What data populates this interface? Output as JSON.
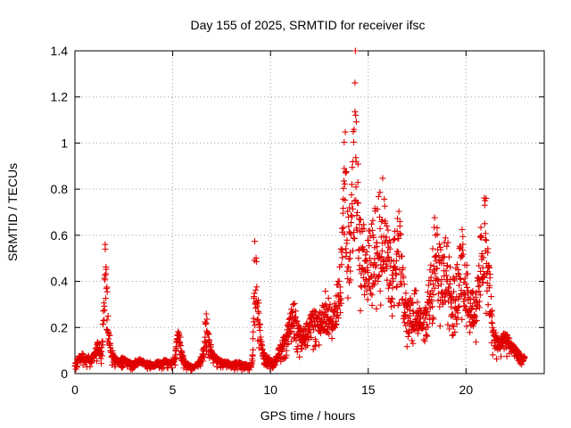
{
  "chart_data": {
    "type": "scatter",
    "title": "Day 155 of 2025, SRMTID for receiver ifsc",
    "xlabel": "GPS time / hours",
    "ylabel": "SRMTID / TECUs",
    "xlim": [
      0,
      24
    ],
    "ylim": [
      0,
      1.4
    ],
    "x_ticks": [
      0,
      5,
      10,
      15,
      20
    ],
    "y_ticks": [
      0,
      0.2,
      0.4,
      0.6,
      0.8,
      1.0,
      1.2,
      1.4
    ],
    "x_tick_labels": [
      "0",
      "5",
      "10",
      "15",
      "20"
    ],
    "y_tick_labels": [
      "0",
      "0.2",
      "0.4",
      "0.6",
      "0.8",
      "1",
      "1.2",
      "1.4"
    ],
    "grid": true,
    "marker": "plus",
    "series": [
      {
        "name": "SRMTID",
        "color": "#e00000",
        "description": "approximate envelope of the scatter cloud, sampled at 0.1 h",
        "x_step": 0.1,
        "x_start": 0.0,
        "points": [
          [
            0.0,
            0.04
          ],
          [
            0.1,
            0.06
          ],
          [
            0.2,
            0.08
          ],
          [
            0.3,
            0.07
          ],
          [
            0.4,
            0.09
          ],
          [
            0.5,
            0.06
          ],
          [
            0.6,
            0.07
          ],
          [
            0.7,
            0.08
          ],
          [
            0.8,
            0.06
          ],
          [
            0.9,
            0.07
          ],
          [
            1.0,
            0.09
          ],
          [
            1.1,
            0.12
          ],
          [
            1.2,
            0.14
          ],
          [
            1.3,
            0.1
          ],
          [
            1.4,
            0.15
          ],
          [
            1.5,
            0.35
          ],
          [
            1.55,
            0.62
          ],
          [
            1.6,
            0.5
          ],
          [
            1.7,
            0.22
          ],
          [
            1.8,
            0.14
          ],
          [
            1.9,
            0.1
          ],
          [
            2.0,
            0.08
          ],
          [
            2.2,
            0.06
          ],
          [
            2.4,
            0.07
          ],
          [
            2.6,
            0.06
          ],
          [
            2.8,
            0.05
          ],
          [
            3.0,
            0.05
          ],
          [
            3.2,
            0.06
          ],
          [
            3.4,
            0.06
          ],
          [
            3.6,
            0.05
          ],
          [
            3.8,
            0.05
          ],
          [
            4.0,
            0.04
          ],
          [
            4.2,
            0.05
          ],
          [
            4.4,
            0.05
          ],
          [
            4.6,
            0.06
          ],
          [
            4.8,
            0.05
          ],
          [
            5.0,
            0.06
          ],
          [
            5.1,
            0.08
          ],
          [
            5.2,
            0.14
          ],
          [
            5.3,
            0.2
          ],
          [
            5.4,
            0.15
          ],
          [
            5.5,
            0.09
          ],
          [
            5.6,
            0.05
          ],
          [
            5.8,
            0.04
          ],
          [
            6.0,
            0.03
          ],
          [
            6.2,
            0.04
          ],
          [
            6.4,
            0.06
          ],
          [
            6.6,
            0.12
          ],
          [
            6.7,
            0.28
          ],
          [
            6.8,
            0.2
          ],
          [
            6.9,
            0.14
          ],
          [
            7.0,
            0.1
          ],
          [
            7.2,
            0.07
          ],
          [
            7.4,
            0.06
          ],
          [
            7.6,
            0.05
          ],
          [
            7.8,
            0.05
          ],
          [
            8.0,
            0.04
          ],
          [
            8.2,
            0.05
          ],
          [
            8.4,
            0.05
          ],
          [
            8.6,
            0.04
          ],
          [
            8.8,
            0.04
          ],
          [
            9.0,
            0.03
          ],
          [
            9.1,
            0.1
          ],
          [
            9.2,
            0.55
          ],
          [
            9.3,
            0.45
          ],
          [
            9.4,
            0.28
          ],
          [
            9.5,
            0.18
          ],
          [
            9.6,
            0.1
          ],
          [
            9.8,
            0.08
          ],
          [
            10.0,
            0.06
          ],
          [
            10.2,
            0.05
          ],
          [
            10.4,
            0.1
          ],
          [
            10.6,
            0.14
          ],
          [
            10.8,
            0.18
          ],
          [
            11.0,
            0.25
          ],
          [
            11.2,
            0.3
          ],
          [
            11.4,
            0.22
          ],
          [
            11.6,
            0.18
          ],
          [
            11.8,
            0.2
          ],
          [
            12.0,
            0.24
          ],
          [
            12.2,
            0.28
          ],
          [
            12.4,
            0.25
          ],
          [
            12.6,
            0.27
          ],
          [
            12.8,
            0.35
          ],
          [
            13.0,
            0.3
          ],
          [
            13.2,
            0.26
          ],
          [
            13.4,
            0.35
          ],
          [
            13.6,
            0.55
          ],
          [
            13.7,
            0.9
          ],
          [
            13.8,
            1.12
          ],
          [
            13.9,
            0.8
          ],
          [
            14.0,
            0.7
          ],
          [
            14.1,
            0.75
          ],
          [
            14.2,
            0.9
          ],
          [
            14.3,
            1.2
          ],
          [
            14.35,
            1.38
          ],
          [
            14.4,
            1.05
          ],
          [
            14.5,
            0.85
          ],
          [
            14.6,
            0.65
          ],
          [
            14.8,
            0.6
          ],
          [
            15.0,
            0.58
          ],
          [
            15.2,
            0.62
          ],
          [
            15.4,
            0.7
          ],
          [
            15.6,
            0.75
          ],
          [
            15.8,
            0.82
          ],
          [
            16.0,
            0.6
          ],
          [
            16.2,
            0.55
          ],
          [
            16.4,
            0.6
          ],
          [
            16.6,
            0.68
          ],
          [
            16.8,
            0.4
          ],
          [
            17.0,
            0.3
          ],
          [
            17.2,
            0.32
          ],
          [
            17.4,
            0.35
          ],
          [
            17.6,
            0.3
          ],
          [
            17.8,
            0.25
          ],
          [
            18.0,
            0.3
          ],
          [
            18.2,
            0.45
          ],
          [
            18.4,
            0.65
          ],
          [
            18.6,
            0.55
          ],
          [
            18.8,
            0.5
          ],
          [
            19.0,
            0.58
          ],
          [
            19.2,
            0.45
          ],
          [
            19.4,
            0.4
          ],
          [
            19.6,
            0.5
          ],
          [
            19.8,
            0.6
          ],
          [
            20.0,
            0.48
          ],
          [
            20.2,
            0.38
          ],
          [
            20.4,
            0.35
          ],
          [
            20.6,
            0.4
          ],
          [
            20.8,
            0.65
          ],
          [
            21.0,
            0.8
          ],
          [
            21.1,
            0.55
          ],
          [
            21.2,
            0.45
          ],
          [
            21.4,
            0.2
          ],
          [
            21.6,
            0.15
          ],
          [
            21.8,
            0.15
          ],
          [
            22.0,
            0.18
          ],
          [
            22.2,
            0.15
          ],
          [
            22.4,
            0.12
          ],
          [
            22.6,
            0.1
          ],
          [
            22.8,
            0.08
          ],
          [
            23.0,
            0.07
          ]
        ]
      }
    ]
  }
}
